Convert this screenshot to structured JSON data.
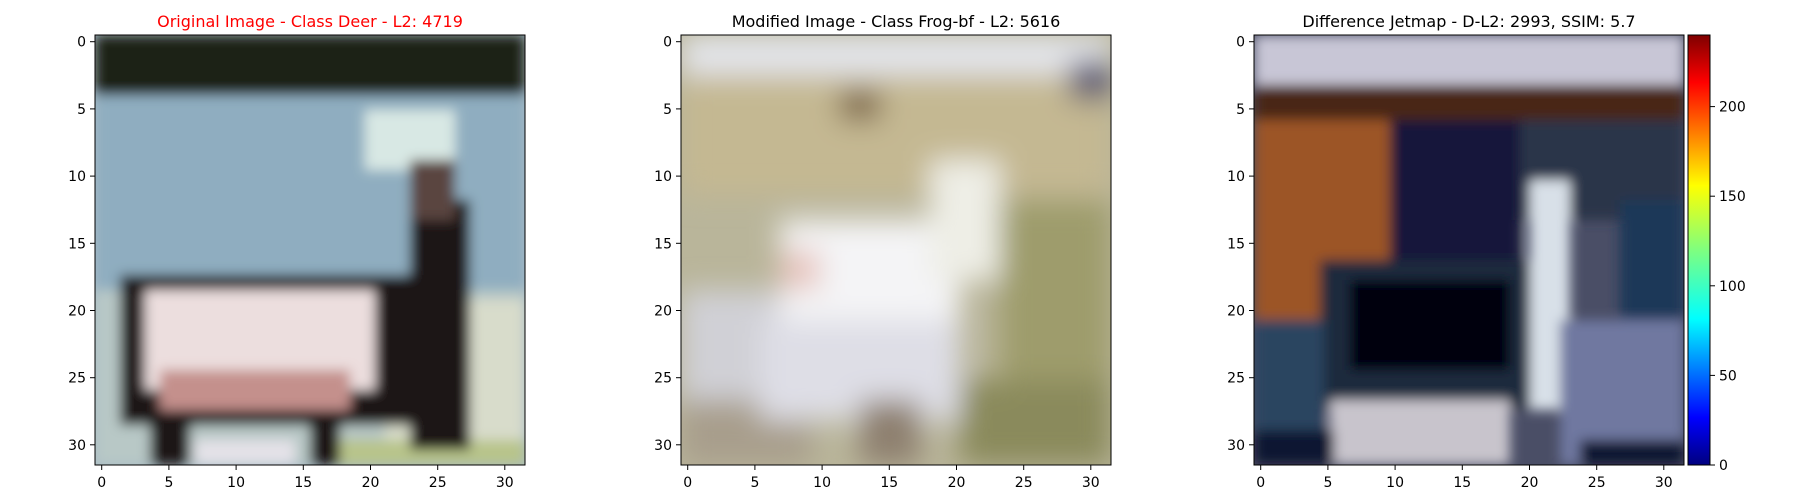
{
  "panels": [
    {
      "id": "original",
      "title": "Original Image - Class Deer - L2: 4719",
      "title_color": "#ff0000",
      "image": "pixelated 32x32 photo of a deer with a white-and-brown body, dark legs and antlers in front of a pale blue-grey background"
    },
    {
      "id": "modified",
      "title": "Modified Image - Class Frog-bf - L2: 5616",
      "title_color": "#000000",
      "image": "pixelated 32x32 photo of a pale, washed-out white animal shape on a khaki/olive mottled background"
    },
    {
      "id": "difference",
      "title": "Difference Jetmap - D-L2: 2993, SSIM: 5.7",
      "title_color": "#000000",
      "image": "pixelated 32x32 difference heat image with dark blue, brown and grey-white regions"
    }
  ],
  "axes": {
    "x_ticks": [
      "0",
      "5",
      "10",
      "15",
      "20",
      "25",
      "30"
    ],
    "y_ticks": [
      "0",
      "5",
      "10",
      "15",
      "20",
      "25",
      "30"
    ]
  },
  "colorbar": {
    "ticks": [
      "0",
      "50",
      "100",
      "150",
      "200"
    ],
    "range": [
      0,
      240
    ],
    "colormap": "jet"
  }
}
